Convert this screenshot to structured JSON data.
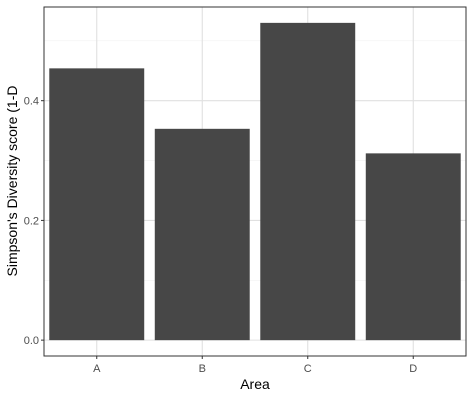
{
  "chart_data": {
    "type": "bar",
    "categories": [
      "A",
      "B",
      "C",
      "D"
    ],
    "values": [
      0.454,
      0.353,
      0.53,
      0.312
    ],
    "xlabel": "Area",
    "ylabel": "Simpson's Diversity score (1-D",
    "ylim": [
      -0.0265,
      0.5565
    ],
    "y_ticks": [
      0.0,
      0.2,
      0.4
    ],
    "y_tick_labels": [
      "0.0",
      "0.2",
      "0.4"
    ],
    "grid": true,
    "legend": "none",
    "colors": {
      "bar": "#474747",
      "grid_major": "#e0e0e0",
      "grid_minor": "#f2f2f2",
      "panel_border": "#333333"
    }
  }
}
